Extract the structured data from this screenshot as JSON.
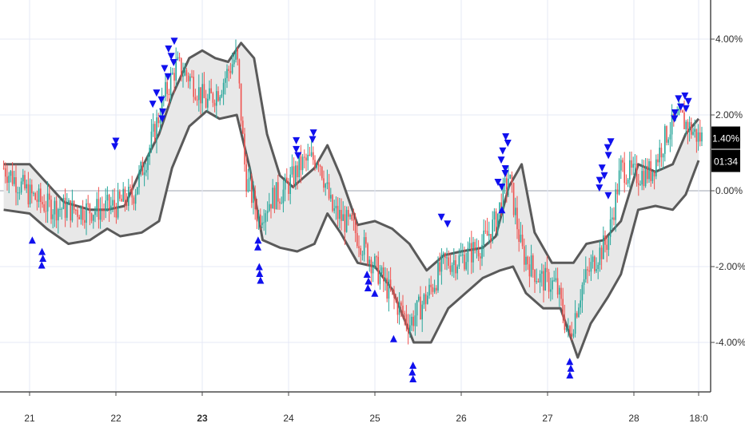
{
  "chart_data": {
    "type": "candlestick",
    "title": "",
    "xlabel": "",
    "ylabel": "",
    "ylim": [
      -5.4,
      5.0
    ],
    "grid": true,
    "y_ticks": [
      {
        "value": 4,
        "label": "4.00%"
      },
      {
        "value": 2,
        "label": "2.00%"
      },
      {
        "value": 0,
        "label": "0.00%"
      },
      {
        "value": -2,
        "label": "-2.00%"
      },
      {
        "value": -4,
        "label": "-4.00%"
      }
    ],
    "x_ticks": [
      {
        "day": 21,
        "label": "21",
        "bold": false
      },
      {
        "day": 22,
        "label": "22",
        "bold": false
      },
      {
        "day": 23,
        "label": "23",
        "bold": true
      },
      {
        "day": 24,
        "label": "24",
        "bold": false
      },
      {
        "day": 25,
        "label": "25",
        "bold": false
      },
      {
        "day": 26,
        "label": "26",
        "bold": false
      },
      {
        "day": 27,
        "label": "27",
        "bold": false
      },
      {
        "day": 28,
        "label": "28",
        "bold": false
      },
      {
        "day": 28.75,
        "label": "18:0",
        "bold": false
      }
    ],
    "xlim": [
      20.7,
      28.82
    ],
    "current_value": {
      "value": 1.4,
      "label": "1.40%"
    },
    "countdown_label": "01:34",
    "colors": {
      "up": "#26a69a",
      "down": "#ef5350",
      "band_fill": "#e8e8e8",
      "band_line": "#5a5a5a",
      "signal_marker": "#1010ee",
      "badge": "#000000",
      "grid": "#e6e9f5",
      "zero_line": "#bfc3cc"
    },
    "price_path": [
      [
        20.7,
        0.6
      ],
      [
        21.0,
        -0.1
      ],
      [
        21.2,
        -0.4
      ],
      [
        21.5,
        -0.5
      ],
      [
        21.8,
        -0.5
      ],
      [
        22.0,
        -0.4
      ],
      [
        22.2,
        -0.1
      ],
      [
        22.4,
        1.2
      ],
      [
        22.55,
        2.4
      ],
      [
        22.7,
        3.3
      ],
      [
        22.85,
        3.0
      ],
      [
        23.05,
        2.3
      ],
      [
        23.2,
        2.7
      ],
      [
        23.4,
        3.6
      ],
      [
        23.5,
        0.4
      ],
      [
        23.65,
        -0.7
      ],
      [
        23.8,
        -0.2
      ],
      [
        23.95,
        0.0
      ],
      [
        24.15,
        0.7
      ],
      [
        24.35,
        0.9
      ],
      [
        24.5,
        -0.5
      ],
      [
        24.75,
        -1.0
      ],
      [
        25.0,
        -2.0
      ],
      [
        25.2,
        -2.8
      ],
      [
        25.4,
        -3.5
      ],
      [
        25.6,
        -2.8
      ],
      [
        25.8,
        -1.9
      ],
      [
        26.0,
        -1.8
      ],
      [
        26.25,
        -1.4
      ],
      [
        26.4,
        -0.8
      ],
      [
        26.55,
        0.4
      ],
      [
        26.7,
        -1.6
      ],
      [
        26.9,
        -2.3
      ],
      [
        27.1,
        -2.5
      ],
      [
        27.25,
        -3.9
      ],
      [
        27.4,
        -2.5
      ],
      [
        27.55,
        -1.8
      ],
      [
        27.7,
        -1.3
      ],
      [
        27.85,
        0.6
      ],
      [
        28.0,
        0.4
      ],
      [
        28.2,
        0.5
      ],
      [
        28.4,
        1.6
      ],
      [
        28.55,
        1.9
      ],
      [
        28.75,
        1.4
      ]
    ],
    "band_upper": [
      [
        20.7,
        0.7
      ],
      [
        21.0,
        0.7
      ],
      [
        21.2,
        0.2
      ],
      [
        21.4,
        -0.3
      ],
      [
        21.7,
        -0.5
      ],
      [
        21.9,
        -0.5
      ],
      [
        22.1,
        -0.4
      ],
      [
        22.3,
        0.6
      ],
      [
        22.5,
        1.5
      ],
      [
        22.65,
        2.5
      ],
      [
        22.85,
        3.5
      ],
      [
        23.0,
        3.7
      ],
      [
        23.15,
        3.5
      ],
      [
        23.3,
        3.4
      ],
      [
        23.45,
        3.9
      ],
      [
        23.6,
        3.5
      ],
      [
        23.75,
        1.5
      ],
      [
        23.9,
        0.4
      ],
      [
        24.05,
        0.1
      ],
      [
        24.3,
        0.6
      ],
      [
        24.45,
        1.2
      ],
      [
        24.6,
        0.4
      ],
      [
        24.8,
        -0.9
      ],
      [
        25.0,
        -0.8
      ],
      [
        25.2,
        -1.0
      ],
      [
        25.4,
        -1.4
      ],
      [
        25.6,
        -2.1
      ],
      [
        25.8,
        -1.7
      ],
      [
        26.0,
        -1.6
      ],
      [
        26.25,
        -1.5
      ],
      [
        26.4,
        -1.2
      ],
      [
        26.55,
        0.1
      ],
      [
        26.7,
        0.7
      ],
      [
        26.85,
        -1.1
      ],
      [
        27.05,
        -1.9
      ],
      [
        27.3,
        -1.9
      ],
      [
        27.45,
        -1.4
      ],
      [
        27.65,
        -1.3
      ],
      [
        27.85,
        -0.8
      ],
      [
        28.05,
        0.7
      ],
      [
        28.25,
        0.5
      ],
      [
        28.45,
        0.7
      ],
      [
        28.6,
        1.5
      ],
      [
        28.75,
        1.9
      ]
    ],
    "band_lower": [
      [
        20.7,
        -0.5
      ],
      [
        21.0,
        -0.6
      ],
      [
        21.2,
        -1.0
      ],
      [
        21.45,
        -1.4
      ],
      [
        21.7,
        -1.3
      ],
      [
        21.9,
        -1.0
      ],
      [
        22.05,
        -1.2
      ],
      [
        22.3,
        -1.1
      ],
      [
        22.5,
        -0.8
      ],
      [
        22.65,
        0.6
      ],
      [
        22.85,
        1.7
      ],
      [
        23.05,
        2.1
      ],
      [
        23.2,
        1.9
      ],
      [
        23.4,
        2.0
      ],
      [
        23.55,
        0.6
      ],
      [
        23.7,
        -1.3
      ],
      [
        23.9,
        -1.5
      ],
      [
        24.1,
        -1.6
      ],
      [
        24.3,
        -1.4
      ],
      [
        24.45,
        -0.6
      ],
      [
        24.6,
        -1.1
      ],
      [
        24.8,
        -1.9
      ],
      [
        25.0,
        -2.0
      ],
      [
        25.2,
        -2.6
      ],
      [
        25.45,
        -4.0
      ],
      [
        25.65,
        -4.0
      ],
      [
        25.85,
        -3.1
      ],
      [
        26.05,
        -2.7
      ],
      [
        26.25,
        -2.3
      ],
      [
        26.45,
        -2.1
      ],
      [
        26.6,
        -2.0
      ],
      [
        26.75,
        -2.7
      ],
      [
        26.95,
        -3.1
      ],
      [
        27.15,
        -3.1
      ],
      [
        27.35,
        -4.4
      ],
      [
        27.5,
        -3.5
      ],
      [
        27.7,
        -2.8
      ],
      [
        27.85,
        -2.2
      ],
      [
        28.05,
        -0.5
      ],
      [
        28.25,
        -0.4
      ],
      [
        28.45,
        -0.5
      ],
      [
        28.6,
        -0.1
      ],
      [
        28.75,
        0.8
      ]
    ],
    "signals_down": [
      {
        "day": 22.05,
        "value": 1.3,
        "count": 2
      },
      {
        "day": 22.48,
        "value": 2.6,
        "count": 5
      },
      {
        "day": 22.62,
        "value": 3.9,
        "count": 6
      },
      {
        "day": 24.12,
        "value": 1.3,
        "count": 3
      },
      {
        "day": 24.3,
        "value": 1.5,
        "count": 2
      },
      {
        "day": 25.82,
        "value": -0.7,
        "count": 2
      },
      {
        "day": 26.5,
        "value": 1.4,
        "count": 3
      },
      {
        "day": 26.47,
        "value": 0.8,
        "count": 5
      },
      {
        "day": 27.75,
        "value": 1.3,
        "count": 3
      },
      {
        "day": 27.65,
        "value": 0.6,
        "count": 5
      },
      {
        "day": 28.48,
        "value": 2.4,
        "count": 4
      },
      {
        "day": 28.62,
        "value": 2.5,
        "count": 3
      }
    ],
    "signals_up": [
      {
        "day": 21.04,
        "value": -1.3,
        "count": 1
      },
      {
        "day": 21.15,
        "value": -1.6,
        "count": 3
      },
      {
        "day": 23.62,
        "value": -1.3,
        "count": 2
      },
      {
        "day": 23.66,
        "value": -2.0,
        "count": 3
      },
      {
        "day": 24.92,
        "value": -2.2,
        "count": 3
      },
      {
        "day": 25.02,
        "value": -2.7,
        "count": 1
      },
      {
        "day": 25.22,
        "value": -3.9,
        "count": 1
      },
      {
        "day": 25.44,
        "value": -4.6,
        "count": 3
      },
      {
        "day": 27.27,
        "value": -4.5,
        "count": 3
      },
      {
        "day": 26.49,
        "value": -0.5,
        "count": 1
      }
    ]
  }
}
